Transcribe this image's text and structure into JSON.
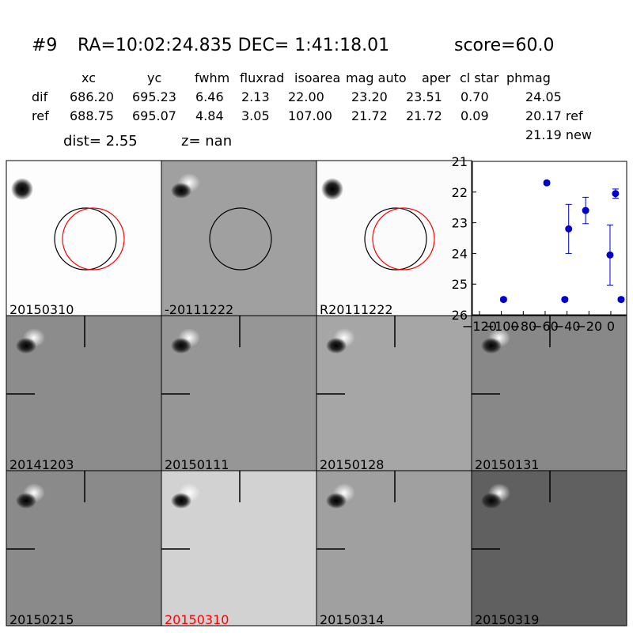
{
  "header": {
    "id": "#9",
    "coords": "RA=10:02:24.835 DEC= 1:41:18.01",
    "score": "score=60.0"
  },
  "table": {
    "columns": [
      "xc",
      "yc",
      "fwhm",
      "fluxrad",
      "isoarea",
      "mag auto",
      "aper",
      "cl star",
      "phmag"
    ],
    "rows": [
      [
        "dif",
        "686.20",
        "695.23",
        "6.46",
        "2.13",
        "22.00",
        "23.20",
        "23.51",
        "0.70",
        "24.05"
      ],
      [
        "ref",
        "688.75",
        "695.07",
        "4.84",
        "3.05",
        "107.00",
        "21.72",
        "21.72",
        "0.09",
        "20.17 ref"
      ]
    ],
    "extra": "21.19 new"
  },
  "dist": "dist=  2.55",
  "z": "z=   nan",
  "panels": [
    {
      "label": "20150310",
      "color": "#000000"
    },
    {
      "label": "-20111222",
      "color": "#000000"
    },
    {
      "label": "R20111222",
      "color": "#000000"
    },
    {
      "label": "20141203",
      "color": "#000000"
    },
    {
      "label": "20150111",
      "color": "#000000"
    },
    {
      "label": "20150128",
      "color": "#000000"
    },
    {
      "label": "20150131",
      "color": "#000000"
    },
    {
      "label": "20150215",
      "color": "#000000"
    },
    {
      "label": "20150310",
      "color": "#ff0000"
    },
    {
      "label": "20150314",
      "color": "#000000"
    },
    {
      "label": "20150319",
      "color": "#000000"
    }
  ],
  "chart_data": {
    "type": "scatter",
    "series": [
      {
        "color": "#0000cc",
        "x": [
          -98,
          -58.5,
          -42,
          -38.5,
          -23,
          -0.7,
          4.3,
          9.4
        ],
        "values": [
          25.5,
          21.7,
          25.5,
          23.2,
          22.6,
          24.05,
          22.05,
          25.5
        ],
        "errors": [
          0.06,
          0.06,
          0.06,
          0.8,
          0.43,
          0.98,
          0.15,
          0.06
        ]
      }
    ],
    "xlim": [
      -126.5,
      14.5
    ],
    "xticks": [
      {
        "value": -120,
        "label": "−120"
      },
      {
        "value": -100,
        "label": "−100"
      },
      {
        "value": -80,
        "label": "−80"
      },
      {
        "value": -60,
        "label": "−60"
      },
      {
        "value": -40,
        "label": "−40"
      },
      {
        "value": -20,
        "label": "−20"
      },
      0
    ],
    "ylim": [
      26,
      21
    ],
    "yticks": [
      21,
      22,
      23,
      24,
      25,
      26
    ]
  }
}
